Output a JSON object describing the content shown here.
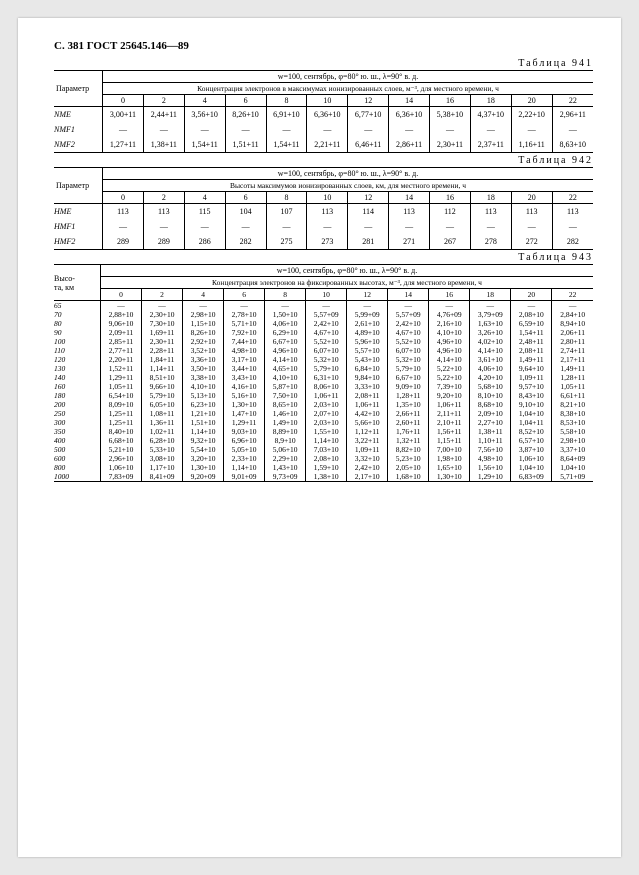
{
  "header": "С. 381 ГОСТ 25645.146—89",
  "table_label_prefix": "Таблица",
  "tables": [
    {
      "num": "941",
      "caption": "w=100, сентябрь, φ=80° ю. ш., λ=90° в. д.",
      "subcaption": "Концентрация электронов в максимумах ионизированных слоев, м⁻³, для местного времени, ч",
      "col_label": "Параметр",
      "hours": [
        "0",
        "2",
        "4",
        "6",
        "8",
        "10",
        "12",
        "14",
        "16",
        "18",
        "20",
        "22"
      ],
      "rows": [
        {
          "p": "NME",
          "v": [
            "3,00+11",
            "2,44+11",
            "3,56+10",
            "8,26+10",
            "6,91+10",
            "6,36+10",
            "6,77+10",
            "6,36+10",
            "5,38+10",
            "4,37+10",
            "2,22+10",
            "2,96+11"
          ]
        },
        {
          "p": "NMF1",
          "v": [
            "—",
            "—",
            "—",
            "—",
            "—",
            "—",
            "—",
            "—",
            "—",
            "—",
            "—",
            "—"
          ]
        },
        {
          "p": "NMF2",
          "v": [
            "1,27+11",
            "1,38+11",
            "1,54+11",
            "1,51+11",
            "1,54+11",
            "2,21+11",
            "6,46+11",
            "2,86+11",
            "2,30+11",
            "2,37+11",
            "1,16+11",
            "8,63+10"
          ]
        }
      ]
    },
    {
      "num": "942",
      "caption": "w=100, сентябрь, φ=80° ю. ш., λ=90° в. д.",
      "subcaption": "Высоты максимумов ионизированных слоев, км, для местного времени, ч",
      "col_label": "Параметр",
      "hours": [
        "0",
        "2",
        "4",
        "6",
        "8",
        "10",
        "12",
        "14",
        "16",
        "18",
        "20",
        "22"
      ],
      "rows": [
        {
          "p": "HME",
          "v": [
            "113",
            "113",
            "115",
            "104",
            "107",
            "113",
            "114",
            "113",
            "112",
            "113",
            "113",
            "113"
          ]
        },
        {
          "p": "HMF1",
          "v": [
            "—",
            "—",
            "—",
            "—",
            "—",
            "—",
            "—",
            "—",
            "—",
            "—",
            "—",
            "—"
          ]
        },
        {
          "p": "HMF2",
          "v": [
            "289",
            "289",
            "286",
            "282",
            "275",
            "273",
            "281",
            "271",
            "267",
            "278",
            "272",
            "282"
          ]
        }
      ]
    },
    {
      "num": "943",
      "caption": "w=100, сентябрь, φ=80° ю. ш., λ=90° в. д.",
      "subcaption": "Концентрация электронов на фиксированных высотах, м⁻³, для местного времени, ч",
      "col_label": "Высо-\nта, км",
      "hours": [
        "0",
        "2",
        "4",
        "6",
        "8",
        "10",
        "12",
        "14",
        "16",
        "18",
        "20",
        "22"
      ],
      "rows": [
        {
          "p": "65",
          "v": [
            "—",
            "—",
            "—",
            "—",
            "—",
            "—",
            "—",
            "—",
            "—",
            "—",
            "—",
            "—"
          ]
        },
        {
          "p": "70",
          "v": [
            "2,88+10",
            "2,30+10",
            "2,98+10",
            "2,78+10",
            "1,50+10",
            "5,57+09",
            "5,99+09",
            "5,57+09",
            "4,76+09",
            "3,79+09",
            "2,08+10",
            "2,84+10"
          ]
        },
        {
          "p": "80",
          "v": [
            "9,06+10",
            "7,30+10",
            "1,15+10",
            "5,71+10",
            "4,06+10",
            "2,42+10",
            "2,61+10",
            "2,42+10",
            "2,16+10",
            "1,63+10",
            "6,59+10",
            "8,94+10"
          ]
        },
        {
          "p": "90",
          "v": [
            "2,09+11",
            "1,69+11",
            "8,26+10",
            "7,92+10",
            "6,29+10",
            "4,67+10",
            "4,89+10",
            "4,67+10",
            "4,10+10",
            "3,26+10",
            "1,54+11",
            "2,06+11"
          ]
        },
        {
          "p": "100",
          "v": [
            "2,85+11",
            "2,30+11",
            "2,92+10",
            "7,44+10",
            "6,67+10",
            "5,52+10",
            "5,96+10",
            "5,52+10",
            "4,96+10",
            "4,02+10",
            "2,48+11",
            "2,80+11"
          ]
        },
        {
          "p": "110",
          "v": [
            "2,77+11",
            "2,28+11",
            "3,52+10",
            "4,98+10",
            "4,96+10",
            "6,07+10",
            "5,57+10",
            "6,07+10",
            "4,96+10",
            "4,14+10",
            "2,08+11",
            "2,74+11"
          ]
        },
        {
          "p": "120",
          "v": [
            "2,20+11",
            "1,84+11",
            "3,36+10",
            "3,17+10",
            "4,14+10",
            "5,32+10",
            "5,43+10",
            "5,32+10",
            "4,14+10",
            "3,61+10",
            "1,49+11",
            "2,17+11"
          ]
        },
        {
          "p": "130",
          "v": [
            "1,52+11",
            "1,14+11",
            "3,50+10",
            "3,44+10",
            "4,65+10",
            "5,79+10",
            "6,84+10",
            "5,79+10",
            "5,22+10",
            "4,06+10",
            "9,64+10",
            "1,49+11"
          ]
        },
        {
          "p": "140",
          "v": [
            "1,29+11",
            "8,51+10",
            "3,38+10",
            "3,43+10",
            "4,10+10",
            "6,31+10",
            "9,84+10",
            "6,67+10",
            "5,22+10",
            "4,20+10",
            "1,09+11",
            "1,28+11"
          ]
        },
        {
          "p": "160",
          "v": [
            "1,05+11",
            "9,66+10",
            "4,10+10",
            "4,16+10",
            "5,87+10",
            "8,06+10",
            "3,33+10",
            "9,09+10",
            "7,39+10",
            "5,68+10",
            "9,57+10",
            "1,05+11"
          ]
        },
        {
          "p": "180",
          "v": [
            "6,54+10",
            "5,79+10",
            "5,13+10",
            "5,16+10",
            "7,50+10",
            "1,06+11",
            "2,08+11",
            "1,28+11",
            "9,20+10",
            "8,10+10",
            "8,43+10",
            "6,61+11"
          ]
        },
        {
          "p": "200",
          "v": [
            "8,09+10",
            "6,05+10",
            "6,23+10",
            "1,30+10",
            "8,65+10",
            "2,03+10",
            "1,06+11",
            "1,35+10",
            "1,06+11",
            "8,68+10",
            "9,10+10",
            "8,21+10"
          ]
        },
        {
          "p": "250",
          "v": [
            "1,25+11",
            "1,08+11",
            "1,21+10",
            "1,47+10",
            "1,46+10",
            "2,07+10",
            "4,42+10",
            "2,66+11",
            "2,11+11",
            "2,09+10",
            "1,04+10",
            "8,38+10"
          ]
        },
        {
          "p": "300",
          "v": [
            "1,25+11",
            "1,36+11",
            "1,51+10",
            "1,29+11",
            "1,49+10",
            "2,03+10",
            "5,66+10",
            "2,60+11",
            "2,10+11",
            "2,27+10",
            "1,04+11",
            "8,53+10"
          ]
        },
        {
          "p": "350",
          "v": [
            "8,40+10",
            "1,02+11",
            "1,14+10",
            "9,03+10",
            "8,89+10",
            "1,55+10",
            "1,12+11",
            "1,76+11",
            "1,56+11",
            "1,38+11",
            "8,52+10",
            "5,58+10"
          ]
        },
        {
          "p": "400",
          "v": [
            "6,68+10",
            "6,28+10",
            "9,32+10",
            "6,96+10",
            "8,9+10",
            "1,14+10",
            "3,22+11",
            "1,32+11",
            "1,15+11",
            "1,10+11",
            "6,57+10",
            "2,98+10"
          ]
        },
        {
          "p": "500",
          "v": [
            "5,21+10",
            "5,33+10",
            "5,54+10",
            "5,05+10",
            "5,06+10",
            "7,03+10",
            "1,09+11",
            "8,82+10",
            "7,00+10",
            "7,56+10",
            "3,87+10",
            "3,37+10"
          ]
        },
        {
          "p": "600",
          "v": [
            "2,96+10",
            "3,08+10",
            "3,20+10",
            "2,33+10",
            "2,29+10",
            "2,08+10",
            "3,32+10",
            "5,23+10",
            "1,98+10",
            "4,98+10",
            "1,06+10",
            "8,64+09"
          ]
        },
        {
          "p": "800",
          "v": [
            "1,06+10",
            "1,17+10",
            "1,30+10",
            "1,14+10",
            "1,43+10",
            "1,59+10",
            "2,42+10",
            "2,05+10",
            "1,65+10",
            "1,56+10",
            "1,04+10",
            "1,04+10"
          ]
        },
        {
          "p": "1000",
          "v": [
            "7,83+09",
            "8,41+09",
            "9,20+09",
            "9,01+09",
            "9,73+09",
            "1,38+10",
            "2,17+10",
            "1,68+10",
            "1,30+10",
            "1,29+10",
            "6,83+09",
            "5,71+09"
          ]
        }
      ]
    }
  ]
}
